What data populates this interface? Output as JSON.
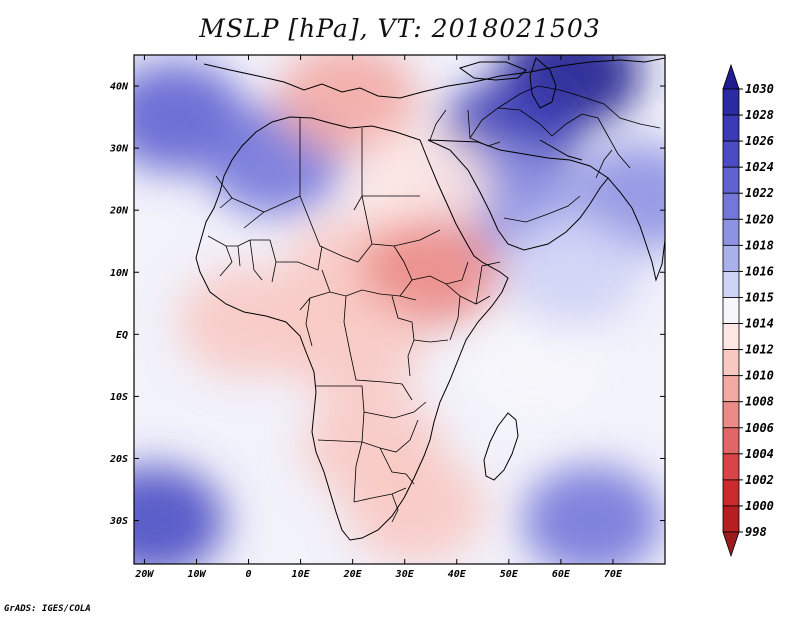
{
  "title": "MSLP [hPa], VT: 2018021503",
  "credit": "GrADS: IGES/COLA",
  "map": {
    "projection": "latlon",
    "lon_range": [
      -22,
      80
    ],
    "lat_range": [
      -37,
      45
    ],
    "x_ticks": [
      {
        "lon": -20,
        "label": "20W"
      },
      {
        "lon": -10,
        "label": "10W"
      },
      {
        "lon": 0,
        "label": "0"
      },
      {
        "lon": 10,
        "label": "10E"
      },
      {
        "lon": 20,
        "label": "20E"
      },
      {
        "lon": 30,
        "label": "30E"
      },
      {
        "lon": 40,
        "label": "40E"
      },
      {
        "lon": 50,
        "label": "50E"
      },
      {
        "lon": 60,
        "label": "60E"
      },
      {
        "lon": 70,
        "label": "70E"
      }
    ],
    "y_ticks": [
      {
        "lat": 40,
        "label": "40N"
      },
      {
        "lat": 30,
        "label": "30N"
      },
      {
        "lat": 20,
        "label": "20N"
      },
      {
        "lat": 10,
        "label": "10N"
      },
      {
        "lat": 0,
        "label": "EQ"
      },
      {
        "lat": -10,
        "label": "10S"
      },
      {
        "lat": -20,
        "label": "20S"
      },
      {
        "lat": -30,
        "label": "30S"
      }
    ],
    "ocean_base_color": "#f2f2fb",
    "field_regions": [
      {
        "name": "north-atlantic-high",
        "lon": -14,
        "lat": 35,
        "value": 1022
      },
      {
        "name": "north-africa-high",
        "lon": 5,
        "lat": 28,
        "value": 1020
      },
      {
        "name": "asia-high",
        "lon": 62,
        "lat": 42,
        "value": 1030
      },
      {
        "name": "iran-high",
        "lon": 50,
        "lat": 32,
        "value": 1026
      },
      {
        "name": "arabia-high",
        "lon": 48,
        "lat": 22,
        "value": 1019
      },
      {
        "name": "india-high",
        "lon": 75,
        "lat": 22,
        "value": 1018
      },
      {
        "name": "mediterranean-low",
        "lon": 19,
        "lat": 38,
        "value": 1008
      },
      {
        "name": "red-sea-trough",
        "lon": 33,
        "lat": 24,
        "value": 1013
      },
      {
        "name": "sahel-low",
        "lon": 20,
        "lat": 10,
        "value": 1011
      },
      {
        "name": "sudan-low",
        "lon": 35,
        "lat": 10,
        "value": 1006
      },
      {
        "name": "central-africa-low",
        "lon": 20,
        "lat": -2,
        "value": 1010
      },
      {
        "name": "gulf-guinea-low",
        "lon": 0,
        "lat": 2,
        "value": 1011
      },
      {
        "name": "southern-africa-low",
        "lon": 24,
        "lat": -18,
        "value": 1010
      },
      {
        "name": "mozambique-low",
        "lon": 32,
        "lat": -28,
        "value": 1010
      },
      {
        "name": "south-atlantic-high",
        "lon": -18,
        "lat": -30,
        "value": 1024
      },
      {
        "name": "south-indian-high",
        "lon": 66,
        "lat": -30,
        "value": 1020
      },
      {
        "name": "indian-ocean-neutral",
        "lon": 55,
        "lat": -5,
        "value": 1014
      },
      {
        "name": "arabian-sea",
        "lon": 62,
        "lat": 10,
        "value": 1015
      }
    ]
  },
  "colorbar": {
    "levels": [
      1030,
      1028,
      1026,
      1024,
      1022,
      1020,
      1018,
      1016,
      1015,
      1014,
      1012,
      1010,
      1008,
      1006,
      1004,
      1002,
      1000,
      998
    ],
    "colors": [
      "#1f1d8f",
      "#2b2aa3",
      "#3a3ab5",
      "#4b4cc4",
      "#5f62d0",
      "#7477d9",
      "#8e92e2",
      "#aab0eb",
      "#cfd3f5",
      "#f6f6fb",
      "#fde6e3",
      "#f8c9c3",
      "#f3aaa4",
      "#eb8a86",
      "#e06668",
      "#d84448",
      "#cb2a2e",
      "#b51f22",
      "#9c1c1c"
    ]
  }
}
